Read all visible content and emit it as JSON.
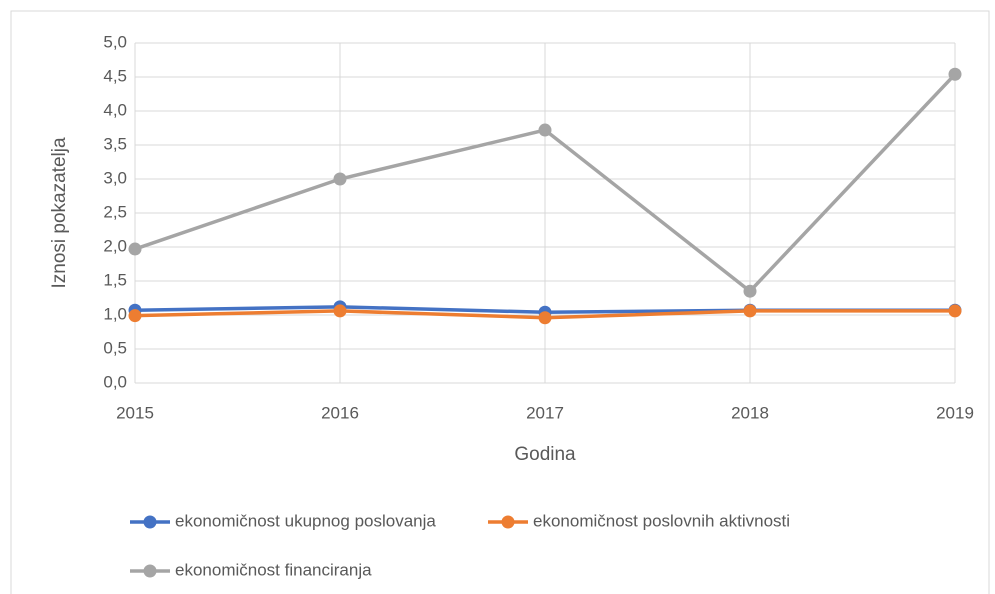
{
  "chart_data": {
    "type": "line",
    "x_label": "Godina",
    "y_label": "Iznosi pokazatelja",
    "categories": [
      "2015",
      "2016",
      "2017",
      "2018",
      "2019"
    ],
    "series": [
      {
        "name": "ekonomičnost ukupnog poslovanja",
        "color": "#4472c4",
        "values": [
          1.07,
          1.12,
          1.04,
          1.07,
          1.07
        ]
      },
      {
        "name": "ekonomičnost poslovnih aktivnosti",
        "color": "#ed7d31",
        "values": [
          0.99,
          1.06,
          0.96,
          1.06,
          1.06
        ]
      },
      {
        "name": "ekonomičnost financiranja",
        "color": "#a5a5a5",
        "values": [
          1.97,
          3.0,
          3.72,
          1.35,
          4.54
        ]
      }
    ],
    "ylim": [
      0,
      5
    ],
    "yticks": [
      {
        "value": 0,
        "label": "0,0"
      },
      {
        "value": 0.5,
        "label": "0,5"
      },
      {
        "value": 1,
        "label": "1,0"
      },
      {
        "value": 1.5,
        "label": "1,5"
      },
      {
        "value": 2,
        "label": "2,0"
      },
      {
        "value": 2.5,
        "label": "2,5"
      },
      {
        "value": 3,
        "label": "3,0"
      },
      {
        "value": 3.5,
        "label": "3,5"
      },
      {
        "value": 4,
        "label": "4,0"
      },
      {
        "value": 4.5,
        "label": "4,5"
      },
      {
        "value": 5,
        "label": "5,0"
      }
    ],
    "grid": true,
    "legend": "bottom"
  }
}
